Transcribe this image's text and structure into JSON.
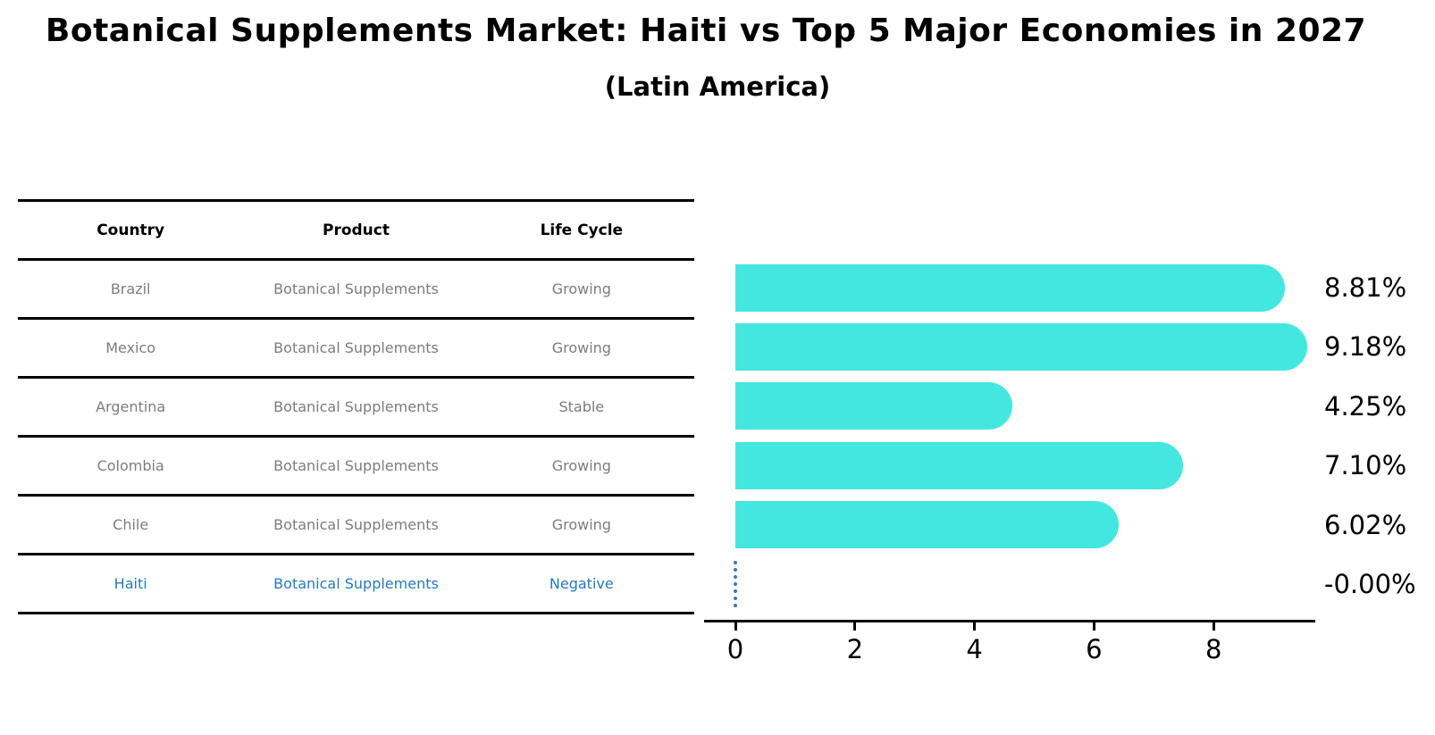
{
  "title": "Botanical Supplements Market: Haiti vs Top 5 Major Economies in 2027",
  "subtitle": "(Latin America)",
  "table": {
    "headers": [
      "Country",
      "Product",
      "Life Cycle"
    ],
    "rows": [
      {
        "country": "Brazil",
        "product": "Botanical Supplements",
        "life_cycle": "Growing"
      },
      {
        "country": "Mexico",
        "product": "Botanical Supplements",
        "life_cycle": "Growing"
      },
      {
        "country": "Argentina",
        "product": "Botanical Supplements",
        "life_cycle": "Stable"
      },
      {
        "country": "Colombia",
        "product": "Botanical Supplements",
        "life_cycle": "Growing"
      },
      {
        "country": "Chile",
        "product": "Botanical Supplements",
        "life_cycle": "Growing"
      },
      {
        "country": "Haiti",
        "product": "Botanical Supplements",
        "life_cycle": "Negative"
      }
    ]
  },
  "chart_data": {
    "type": "bar",
    "orientation": "horizontal",
    "title": "Botanical Supplements Market: Haiti vs Top 5 Major Economies in 2027 (Latin America)",
    "categories": [
      "Brazil",
      "Mexico",
      "Argentina",
      "Colombia",
      "Chile",
      "Haiti"
    ],
    "values": [
      8.81,
      9.18,
      4.25,
      7.1,
      6.02,
      -0.0
    ],
    "value_labels": [
      "8.81%",
      "9.18%",
      "4.25%",
      "7.10%",
      "6.02%",
      "-0.00%"
    ],
    "xticks": [
      "0",
      "2",
      "4",
      "6",
      "8"
    ],
    "xtick_values": [
      0,
      2,
      4,
      6,
      8
    ],
    "xlim": [
      -0.46,
      9.64
    ],
    "xlabel": "",
    "ylabel": "",
    "grid": false,
    "legend": "none",
    "bar_color": "#44e7e0",
    "highlight_color": "#2878be",
    "zero_marker_style": "dotted-vertical-line"
  }
}
